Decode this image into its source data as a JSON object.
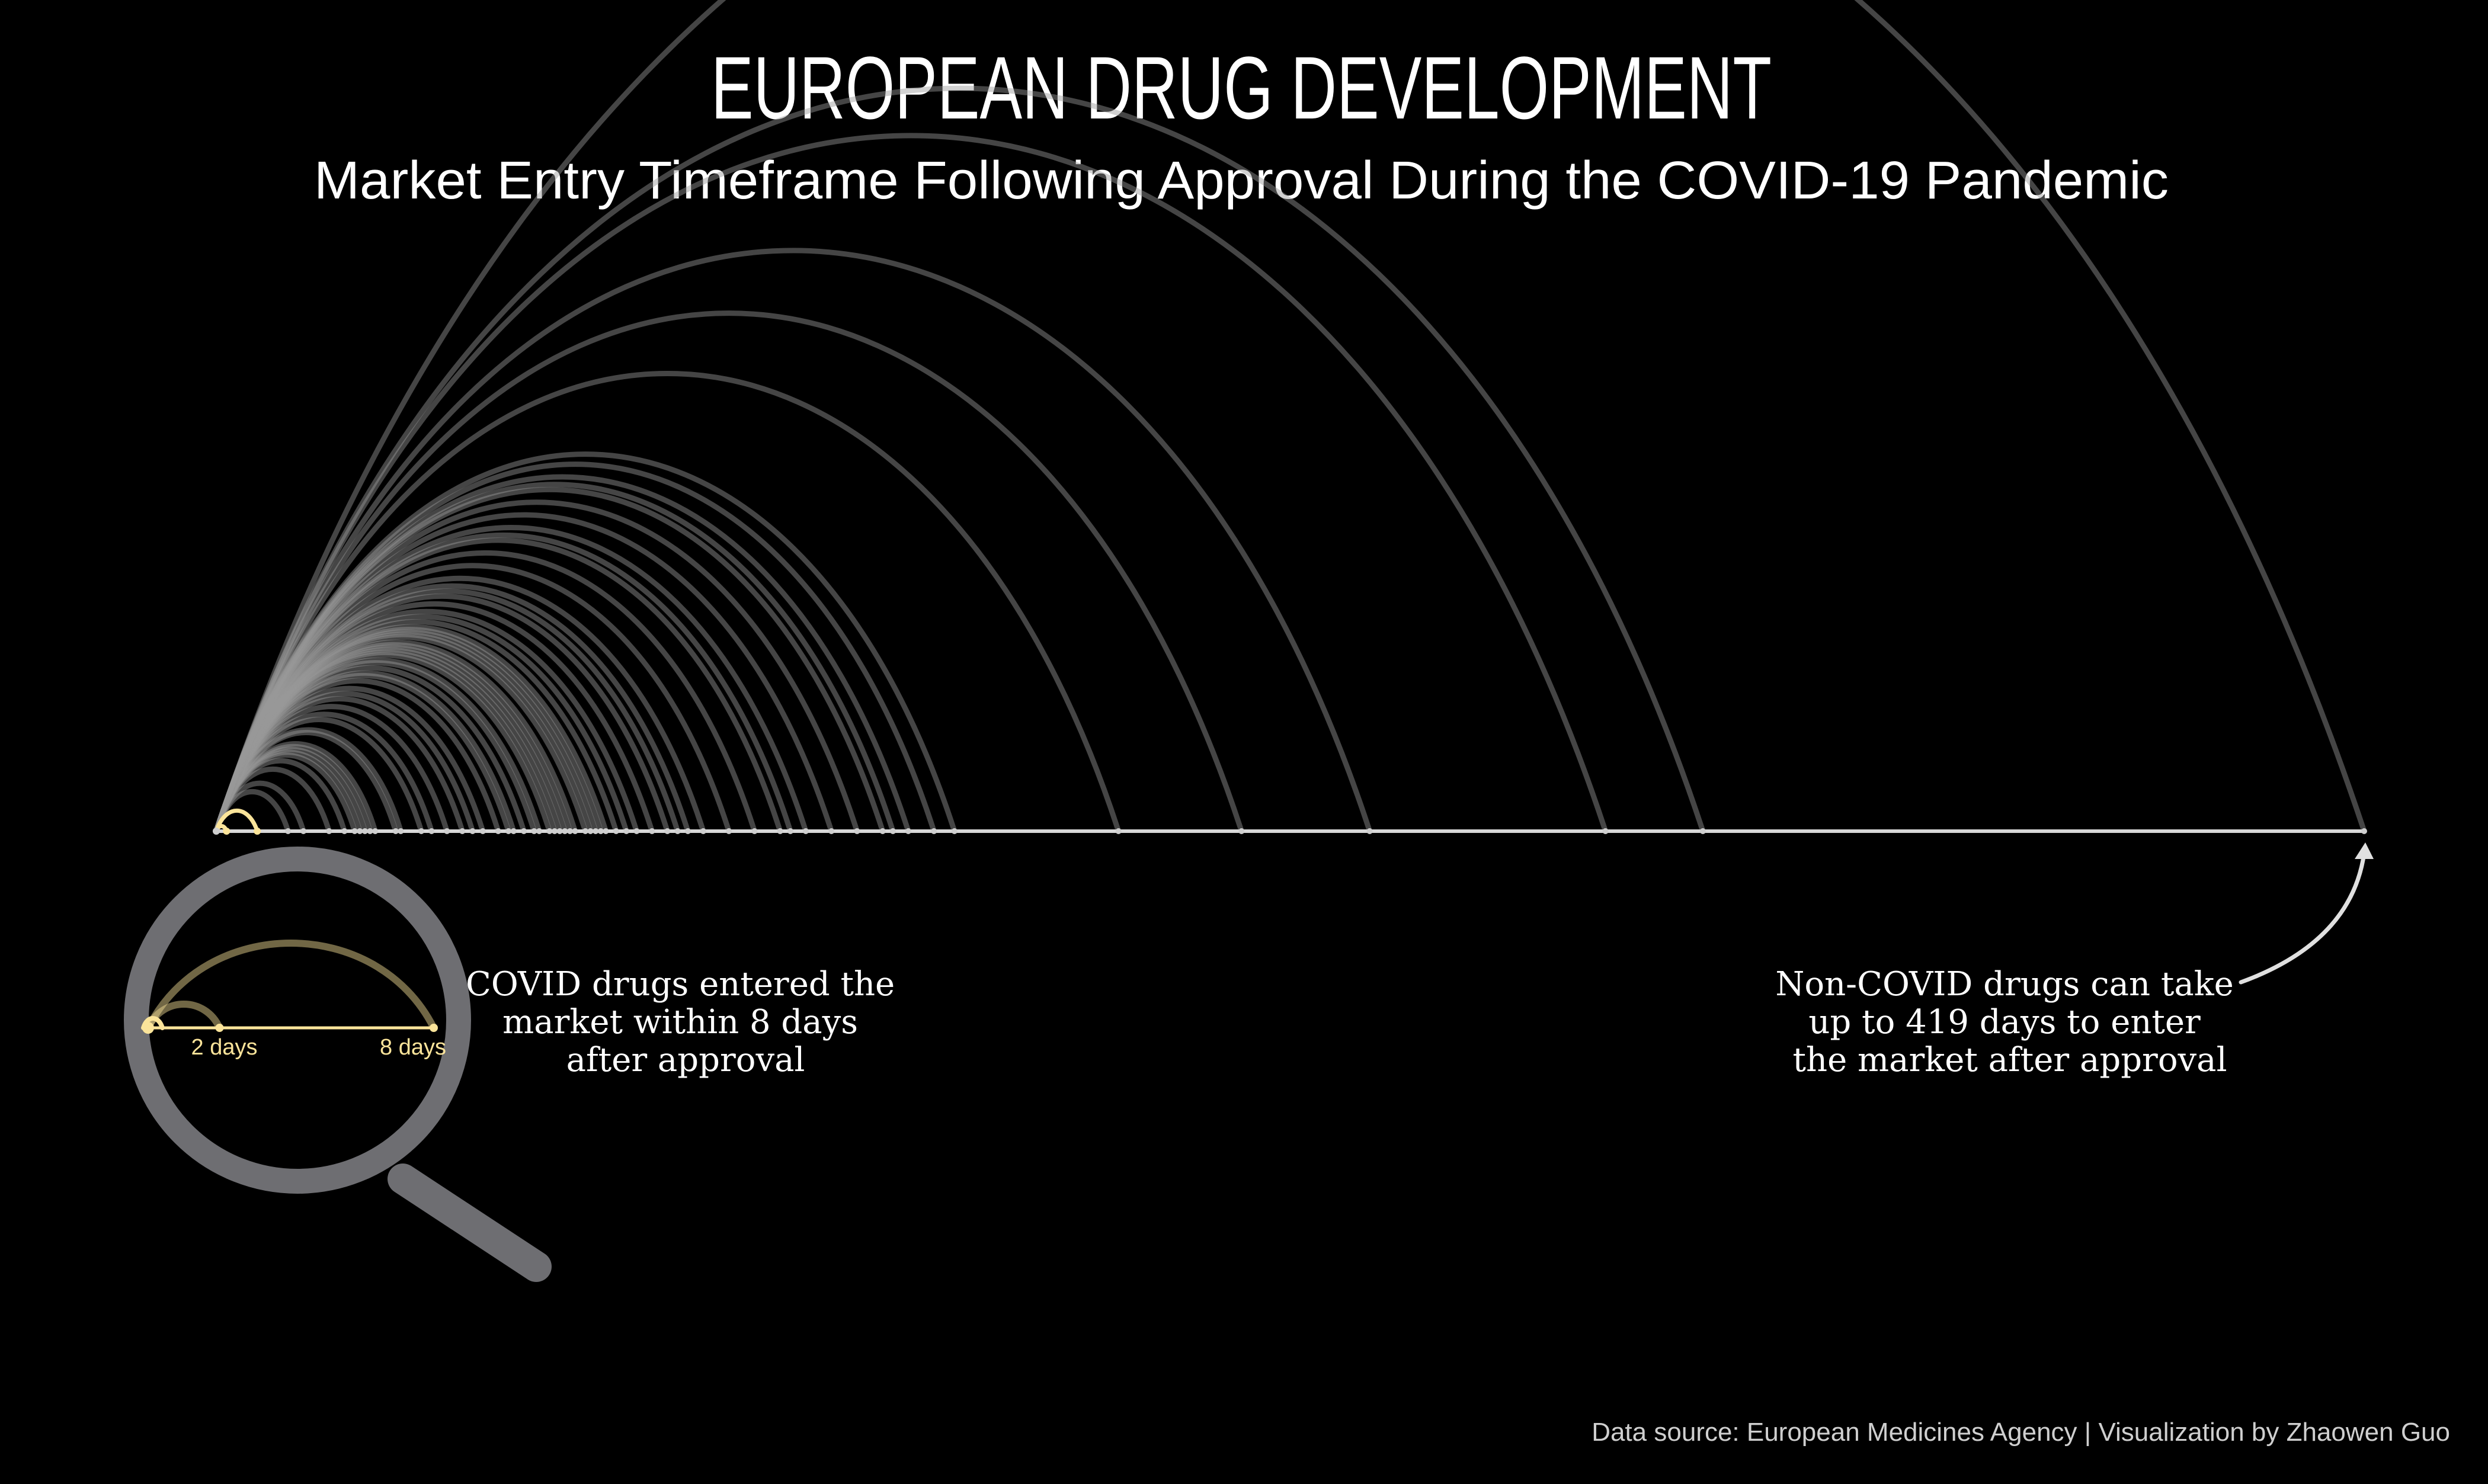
{
  "chart_data": {
    "type": "arc",
    "title": "EUROPEAN DRUG DEVELOPMENT",
    "subtitle": "Market Entry Timeframe Following Approval During the COVID-19 Pandemic",
    "x_unit": "days",
    "xlim": [
      0,
      419
    ],
    "covid_days": [
      2,
      8
    ],
    "non_covid_days": [
      14,
      17,
      22,
      25,
      27,
      28,
      29,
      30,
      31,
      35,
      36,
      40,
      42,
      45,
      48,
      50,
      52,
      55,
      57,
      58,
      60,
      62,
      63,
      65,
      66,
      67,
      68,
      69,
      70,
      72,
      73,
      74,
      75,
      76,
      78,
      80,
      82,
      85,
      88,
      90,
      92,
      95,
      100,
      105,
      110,
      112,
      115,
      120,
      125,
      130,
      132,
      135,
      140,
      144,
      176,
      200,
      225,
      271,
      290,
      419
    ],
    "annotations": {
      "covid": [
        "COVID drugs entered the",
        "market within 8 days",
        "after approval"
      ],
      "non_covid": [
        "Non-COVID drugs can take",
        "up to 419 days to enter",
        "the market after approval"
      ]
    },
    "zoom_labels": [
      "2 days",
      "8 days"
    ],
    "colors": {
      "background": "#000000",
      "covid": "#fbe49a",
      "non_covid": "#9a9a9a",
      "axis": "#d8d8d8",
      "magnifier": "#6e6e72"
    }
  },
  "caption": "Data source: European Medicines Agency | Visualization by Zhaowen Guo"
}
